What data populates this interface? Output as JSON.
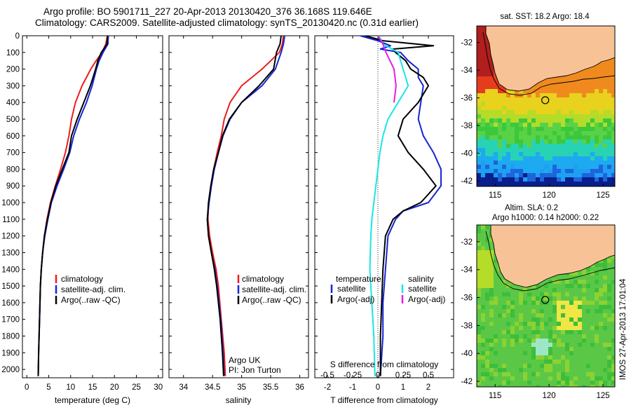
{
  "header": {
    "line1": "Argo profile: BO 5901711_227 20-Apr-2013 20130420_376 36.168S 119.646E",
    "line2": "Climatology: CARS2009. Satellite-adjusted climatology: synTS_20130420.nc (0.31d earlier)"
  },
  "colors": {
    "climatology": "#ee1c1c",
    "satellite": "#1624d6",
    "argo": "#000000",
    "s_satellite": "#19e6e6",
    "s_argo": "#e61ee6",
    "land": "#f7c396",
    "ocean_bg": "#ffffff"
  },
  "chart_data": [
    {
      "type": "line",
      "xlabel": "temperature (deg C)",
      "ylabel": "",
      "xlim": [
        -1,
        31
      ],
      "ylim": [
        2050,
        0
      ],
      "xticks": [
        0,
        5,
        10,
        15,
        20,
        25,
        30
      ],
      "yticks": [
        0,
        100,
        200,
        300,
        400,
        500,
        600,
        700,
        800,
        900,
        1000,
        1100,
        1200,
        1300,
        1400,
        1500,
        1600,
        1700,
        1800,
        1900,
        2000
      ],
      "legend": [
        "climatology",
        "satellite-adj. clim.",
        "Argo(..raw -QC)"
      ],
      "series": [
        {
          "name": "climatology",
          "color": "#ee1c1c",
          "depth": [
            0,
            50,
            100,
            150,
            200,
            300,
            400,
            500,
            600,
            700,
            800,
            900,
            1000,
            1100,
            1200,
            1300,
            1400,
            1500,
            1700,
            1900,
            2040
          ],
          "values": [
            18.4,
            18.0,
            17.2,
            15.8,
            14.6,
            12.6,
            11.1,
            10.2,
            9.6,
            8.8,
            7.7,
            6.5,
            5.4,
            4.6,
            4.0,
            3.6,
            3.3,
            3.1,
            2.9,
            2.7,
            2.6
          ]
        },
        {
          "name": "satellite-adj. clim.",
          "color": "#1624d6",
          "depth": [
            0,
            50,
            100,
            150,
            200,
            300,
            400,
            500,
            600,
            700,
            800,
            900,
            1000,
            1100,
            1200,
            1300,
            1400,
            1500,
            1700,
            1900,
            2040
          ],
          "values": [
            18.6,
            18.5,
            17.4,
            16.5,
            15.9,
            14.9,
            13.6,
            12.0,
            10.7,
            9.8,
            8.4,
            6.9,
            5.6,
            4.8,
            4.1,
            3.6,
            3.3,
            3.1,
            2.9,
            2.7,
            2.6
          ]
        },
        {
          "name": "Argo(..raw -QC)",
          "color": "#000000",
          "depth": [
            0,
            50,
            100,
            150,
            200,
            300,
            400,
            500,
            600,
            700,
            800,
            900,
            1000,
            1100,
            1200,
            1300,
            1400,
            1500,
            1700,
            1900,
            2040
          ],
          "values": [
            18.4,
            18.3,
            17.0,
            16.2,
            15.7,
            14.5,
            13.0,
            11.5,
            10.2,
            9.6,
            8.1,
            6.6,
            5.5,
            4.7,
            4.0,
            3.6,
            3.3,
            3.1,
            2.9,
            2.7,
            2.6
          ]
        }
      ]
    },
    {
      "type": "line",
      "xlabel": "salinity",
      "ylabel": "",
      "xlim": [
        33.75,
        36.15
      ],
      "ylim": [
        2050,
        0
      ],
      "xticks": [
        34,
        34.5,
        35,
        35.5,
        36
      ],
      "xticklabels": [
        "34",
        "34.5",
        "35",
        "35.5",
        "36"
      ],
      "legend": [
        "climatology",
        "satellite-adj. clim.",
        "Argo(..raw -QC)"
      ],
      "annotation": [
        "Argo UK",
        "PI: Jon Turton"
      ],
      "series": [
        {
          "name": "climatology",
          "color": "#ee1c1c",
          "depth": [
            0,
            50,
            100,
            200,
            300,
            400,
            500,
            600,
            700,
            800,
            900,
            1000,
            1100,
            1200,
            1300,
            1400,
            1500,
            1700,
            1900,
            2040
          ],
          "values": [
            35.72,
            35.7,
            35.65,
            35.35,
            35.0,
            34.8,
            34.7,
            34.65,
            34.58,
            34.52,
            34.47,
            34.43,
            34.42,
            34.45,
            34.5,
            34.56,
            34.6,
            34.65,
            34.7,
            34.72
          ]
        },
        {
          "name": "satellite-adj. clim.",
          "color": "#1624d6",
          "depth": [
            0,
            50,
            100,
            200,
            300,
            400,
            500,
            600,
            700,
            800,
            900,
            1000,
            1100,
            1200,
            1300,
            1400,
            1500,
            1700,
            1900,
            2040
          ],
          "values": [
            35.74,
            35.72,
            35.68,
            35.58,
            35.35,
            35.0,
            34.8,
            34.68,
            34.6,
            34.53,
            34.48,
            34.44,
            34.41,
            34.43,
            34.48,
            34.54,
            34.58,
            34.64,
            34.68,
            34.7
          ]
        },
        {
          "name": "Argo(..raw -QC)",
          "color": "#000000",
          "depth": [
            0,
            50,
            100,
            200,
            300,
            400,
            500,
            600,
            700,
            800,
            900,
            1000,
            1100,
            1200,
            1300,
            1400,
            1500,
            1700,
            1900,
            2040
          ],
          "values": [
            35.68,
            35.66,
            35.6,
            35.55,
            35.3,
            35.0,
            34.79,
            34.67,
            34.6,
            34.52,
            34.47,
            34.43,
            34.41,
            34.43,
            34.48,
            34.53,
            34.57,
            34.63,
            34.67,
            34.69
          ]
        }
      ]
    },
    {
      "type": "line",
      "xlabel": "T difference from climatology",
      "xlabel_top": "S difference from climatology",
      "xlim": [
        -2.5,
        3
      ],
      "ylim": [
        2050,
        0
      ],
      "xticks": [
        -2,
        -1,
        0,
        1,
        2
      ],
      "s_xticks": [
        -0.5,
        -0.25,
        0,
        0.25,
        0.5
      ],
      "s_xticklabels": [
        "-0.5",
        "-0.25",
        "0",
        "0.25",
        "0.5"
      ],
      "legend_left": {
        "title": "temperature",
        "items": [
          "satellite",
          "Argo(-adj)"
        ]
      },
      "legend_right": {
        "title": "salinity",
        "items": [
          "satellite",
          "Argo(-adj)"
        ]
      },
      "series": [
        {
          "name": "satellite",
          "group": "temperature",
          "color": "#1624d6",
          "depth": [
            0,
            30,
            60,
            80,
            100,
            150,
            200,
            250,
            300,
            400,
            500,
            600,
            700,
            800,
            900,
            1000,
            1050,
            1100,
            1200,
            1400,
            1600,
            1800,
            2040
          ],
          "values": [
            -0.7,
            0.0,
            0.5,
            0.1,
            0.9,
            1.2,
            1.6,
            1.6,
            1.8,
            1.7,
            1.6,
            1.8,
            2.2,
            2.5,
            2.5,
            2.0,
            1.0,
            0.7,
            0.4,
            0.3,
            0.2,
            0.2,
            0.1
          ]
        },
        {
          "name": "Argo(-adj)",
          "group": "temperature",
          "color": "#000000",
          "depth": [
            0,
            30,
            60,
            80,
            100,
            150,
            200,
            250,
            300,
            400,
            500,
            600,
            700,
            800,
            900,
            1000,
            1050,
            1100,
            1200,
            1400,
            1600,
            1800,
            2040
          ],
          "values": [
            -0.5,
            0.2,
            2.2,
            0.6,
            0.7,
            1.1,
            1.3,
            1.8,
            2.0,
            1.6,
            1.0,
            0.8,
            1.2,
            1.8,
            2.3,
            1.7,
            1.0,
            0.6,
            0.3,
            0.2,
            0.15,
            0.1,
            0.1
          ]
        },
        {
          "name": "satellite",
          "group": "salinity",
          "color": "#19e6e6",
          "depth": [
            0,
            50,
            100,
            200,
            300,
            400,
            500,
            600,
            700,
            800,
            900,
            1000,
            1100,
            1200,
            1400,
            1600,
            1800,
            2040
          ],
          "values": [
            0.01,
            0.05,
            0.2,
            0.25,
            0.3,
            0.2,
            0.1,
            0.05,
            0.02,
            0.0,
            -0.02,
            -0.04,
            -0.06,
            -0.07,
            -0.08,
            -0.06,
            -0.04,
            -0.03
          ]
        },
        {
          "name": "Argo(-adj)",
          "group": "salinity",
          "color": "#e61ee6",
          "depth": [
            0,
            50,
            100,
            150,
            200,
            300,
            400
          ],
          "values": [
            0.0,
            0.05,
            0.08,
            0.12,
            0.16,
            0.18,
            0.16
          ]
        }
      ]
    },
    {
      "type": "heatmap",
      "title": "sat. SST: 18.2 Argo: 18.4",
      "xticks": [
        115,
        120,
        125
      ],
      "yticks": [
        -32,
        -34,
        -36,
        -38,
        -40,
        -42
      ],
      "xlim": [
        113.3,
        126.1
      ],
      "ylim": [
        -42.4,
        -30.8
      ],
      "marker": {
        "lon": 119.646,
        "lat": -36.168
      }
    },
    {
      "type": "heatmap",
      "title": "Altim. SLA: 0.2",
      "subtitle": "Argo h1000: 0.14 h2000: 0.22",
      "xticks": [
        115,
        120,
        125
      ],
      "yticks": [
        -32,
        -34,
        -36,
        -38,
        -40,
        -42
      ],
      "xlim": [
        113.3,
        126.1
      ],
      "ylim": [
        -42.4,
        -30.8
      ],
      "marker": {
        "lon": 119.646,
        "lat": -36.168
      },
      "side_label": "IMOS 27-Apr-2013 17:01:04"
    }
  ]
}
